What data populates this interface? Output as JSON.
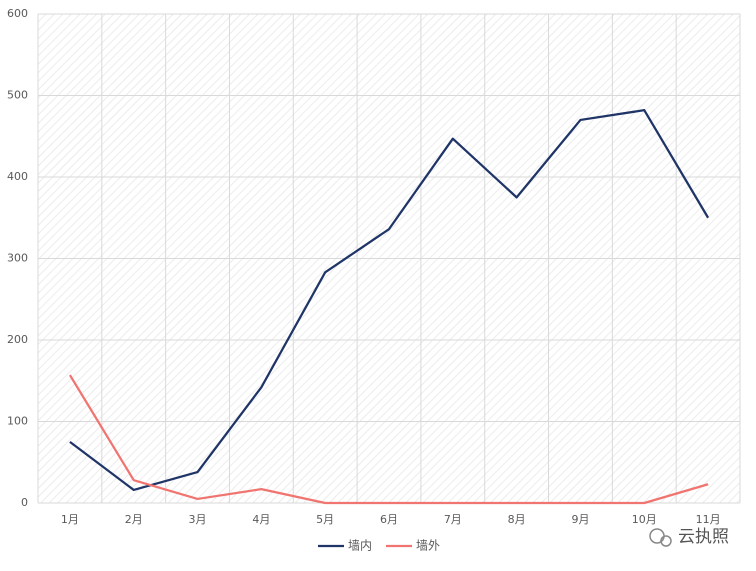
{
  "chart_data": {
    "type": "line",
    "categories": [
      "1月",
      "2月",
      "3月",
      "4月",
      "5月",
      "6月",
      "7月",
      "8月",
      "9月",
      "10月",
      "11月"
    ],
    "series": [
      {
        "name": "墙内",
        "color": "#1f3568",
        "values": [
          75,
          16,
          38,
          142,
          283,
          336,
          447,
          375,
          470,
          482,
          350
        ]
      },
      {
        "name": "墙外",
        "color": "#f07470",
        "values": [
          157,
          28,
          5,
          17,
          0,
          0,
          0,
          0,
          0,
          0,
          23
        ]
      }
    ],
    "ylim": [
      0,
      600
    ],
    "yticks": [
      0,
      100,
      200,
      300,
      400,
      500,
      600
    ],
    "grid": true,
    "legend": "bottom",
    "watermark": "云执照"
  }
}
